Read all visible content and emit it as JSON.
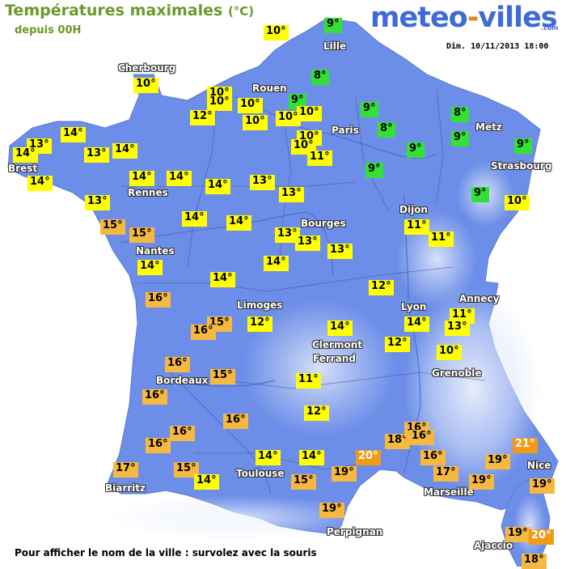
{
  "header": {
    "title": "Températures maximales",
    "unit": "(°C)",
    "subtitle": "depuis 00H",
    "logo_left": "meteo",
    "logo_dash": "-",
    "logo_right": "villes",
    "logo_suffix": ".com",
    "datetime": "Dim. 10/11/2013 18:00"
  },
  "footer": {
    "hint": "Pour afficher le nom de la ville : survolez avec la souris"
  },
  "colors": {
    "band-green": "#34e038",
    "band-yellow": "#ffff00",
    "band-orange": "#f5b841",
    "band-dark-orange": "#f09a16",
    "land": "#6d8ee8",
    "sea": "#ffffff",
    "title": "#6a9a2a",
    "logo": "#3e6bd8",
    "logo_dash": "#e08a1c"
  },
  "cities": [
    {
      "name": "Cherbourg"
    },
    {
      "name": "Rouen"
    },
    {
      "name": "Lille"
    },
    {
      "name": "Paris"
    },
    {
      "name": "Metz"
    },
    {
      "name": "Strasbourg"
    },
    {
      "name": "Brest"
    },
    {
      "name": "Rennes"
    },
    {
      "name": "Nantes"
    },
    {
      "name": "Bourges"
    },
    {
      "name": "Dijon"
    },
    {
      "name": "Limoges"
    },
    {
      "name": "Lyon"
    },
    {
      "name": "Annecy"
    },
    {
      "name": "Clermont"
    },
    {
      "name": "Ferrand"
    },
    {
      "name": "Grenoble"
    },
    {
      "name": "Bordeaux"
    },
    {
      "name": "Toulouse"
    },
    {
      "name": "Biarritz"
    },
    {
      "name": "Marseille"
    },
    {
      "name": "Nice"
    },
    {
      "name": "Perpignan"
    },
    {
      "name": "Ajaccio"
    }
  ],
  "readings": [
    {
      "value": "9°",
      "band": "band-green"
    },
    {
      "value": "10°",
      "band": "band-yellow"
    },
    {
      "value": "8°",
      "band": "band-green"
    },
    {
      "value": "10°",
      "band": "band-yellow"
    },
    {
      "value": "10°",
      "band": "band-yellow"
    },
    {
      "value": "10°",
      "band": "band-yellow"
    },
    {
      "value": "10°",
      "band": "band-yellow"
    },
    {
      "value": "9°",
      "band": "band-green"
    },
    {
      "value": "10°",
      "band": "band-yellow"
    },
    {
      "value": "10°",
      "band": "band-yellow"
    },
    {
      "value": "10°",
      "band": "band-yellow"
    },
    {
      "value": "12°",
      "band": "band-yellow"
    },
    {
      "value": "9°",
      "band": "band-green"
    },
    {
      "value": "8°",
      "band": "band-green"
    },
    {
      "value": "8°",
      "band": "band-green"
    },
    {
      "value": "9°",
      "band": "band-green"
    },
    {
      "value": "10°",
      "band": "band-yellow"
    },
    {
      "value": "10°",
      "band": "band-yellow"
    },
    {
      "value": "11°",
      "band": "band-yellow"
    },
    {
      "value": "9°",
      "band": "band-green"
    },
    {
      "value": "9°",
      "band": "band-green"
    },
    {
      "value": "9°",
      "band": "band-green"
    },
    {
      "value": "14°",
      "band": "band-yellow"
    },
    {
      "value": "13°",
      "band": "band-yellow"
    },
    {
      "value": "14°",
      "band": "band-yellow"
    },
    {
      "value": "13°",
      "band": "band-yellow"
    },
    {
      "value": "14°",
      "band": "band-yellow"
    },
    {
      "value": "14°",
      "band": "band-yellow"
    },
    {
      "value": "14°",
      "band": "band-yellow"
    },
    {
      "value": "14°",
      "band": "band-yellow"
    },
    {
      "value": "14°",
      "band": "band-yellow"
    },
    {
      "value": "13°",
      "band": "band-yellow"
    },
    {
      "value": "13°",
      "band": "band-yellow"
    },
    {
      "value": "9°",
      "band": "band-green"
    },
    {
      "value": "13°",
      "band": "band-yellow"
    },
    {
      "value": "10°",
      "band": "band-yellow"
    },
    {
      "value": "15°",
      "band": "band-orange"
    },
    {
      "value": "15°",
      "band": "band-orange"
    },
    {
      "value": "14°",
      "band": "band-yellow"
    },
    {
      "value": "14°",
      "band": "band-yellow"
    },
    {
      "value": "13°",
      "band": "band-yellow"
    },
    {
      "value": "13°",
      "band": "band-yellow"
    },
    {
      "value": "11°",
      "band": "band-yellow"
    },
    {
      "value": "13°",
      "band": "band-yellow"
    },
    {
      "value": "11°",
      "band": "band-yellow"
    },
    {
      "value": "14°",
      "band": "band-yellow"
    },
    {
      "value": "14°",
      "band": "band-yellow"
    },
    {
      "value": "14°",
      "band": "band-yellow"
    },
    {
      "value": "12°",
      "band": "band-yellow"
    },
    {
      "value": "16°",
      "band": "band-orange"
    },
    {
      "value": "11°",
      "band": "band-yellow"
    },
    {
      "value": "15°",
      "band": "band-orange"
    },
    {
      "value": "16°",
      "band": "band-orange"
    },
    {
      "value": "12°",
      "band": "band-yellow"
    },
    {
      "value": "14°",
      "band": "band-yellow"
    },
    {
      "value": "13°",
      "band": "band-yellow"
    },
    {
      "value": "14°",
      "band": "band-yellow"
    },
    {
      "value": "12°",
      "band": "band-yellow"
    },
    {
      "value": "10°",
      "band": "band-yellow"
    },
    {
      "value": "16°",
      "band": "band-orange"
    },
    {
      "value": "15°",
      "band": "band-orange"
    },
    {
      "value": "11°",
      "band": "band-yellow"
    },
    {
      "value": "16°",
      "band": "band-orange"
    },
    {
      "value": "12°",
      "band": "band-yellow"
    },
    {
      "value": "16°",
      "band": "band-orange"
    },
    {
      "value": "16°",
      "band": "band-orange"
    },
    {
      "value": "16°",
      "band": "band-orange"
    },
    {
      "value": "18°",
      "band": "band-orange"
    },
    {
      "value": "16°",
      "band": "band-orange"
    },
    {
      "value": "16°",
      "band": "band-orange"
    },
    {
      "value": "21°",
      "band": "band-dark-orange"
    },
    {
      "value": "14°",
      "band": "band-yellow"
    },
    {
      "value": "14°",
      "band": "band-yellow"
    },
    {
      "value": "20°",
      "band": "band-dark-orange"
    },
    {
      "value": "16°",
      "band": "band-orange"
    },
    {
      "value": "19°",
      "band": "band-orange"
    },
    {
      "value": "17°",
      "band": "band-orange"
    },
    {
      "value": "15°",
      "band": "band-orange"
    },
    {
      "value": "19°",
      "band": "band-orange"
    },
    {
      "value": "17°",
      "band": "band-orange"
    },
    {
      "value": "15°",
      "band": "band-orange"
    },
    {
      "value": "14°",
      "band": "band-yellow"
    },
    {
      "value": "19°",
      "band": "band-orange"
    },
    {
      "value": "19°",
      "band": "band-orange"
    },
    {
      "value": "19°",
      "band": "band-orange"
    },
    {
      "value": "19°",
      "band": "band-orange"
    },
    {
      "value": "20°",
      "band": "band-dark-orange"
    },
    {
      "value": "18°",
      "band": "band-orange"
    }
  ]
}
